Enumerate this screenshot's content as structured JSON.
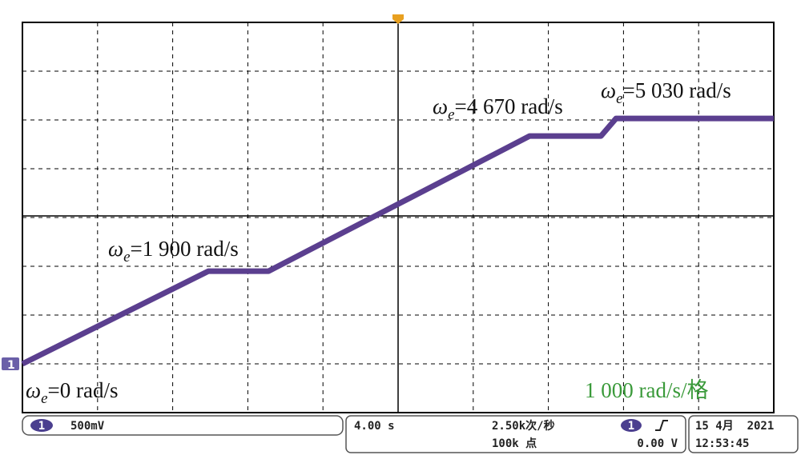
{
  "chart_data": {
    "type": "line",
    "x": [
      0,
      9.9,
      13.1,
      27.0,
      30.8,
      31.6,
      40
    ],
    "series": [
      {
        "color": "#5b3f8f",
        "values": [
          0,
          1900,
          1900,
          4670,
          4670,
          5030,
          5030
        ]
      }
    ],
    "xlim": [
      0,
      40
    ],
    "ylim": [
      -1000,
      7000
    ],
    "grid": true,
    "annotations": [
      {
        "symbol": "ω",
        "subscript": "e",
        "text": "=0 rad/s"
      },
      {
        "symbol": "ω",
        "subscript": "e",
        "text": "=1 900 rad/s"
      },
      {
        "symbol": "ω",
        "subscript": "e",
        "text": "=4 670 rad/s"
      },
      {
        "symbol": "ω",
        "subscript": "e",
        "text": "=5 030 rad/s"
      }
    ],
    "scale_label": "1 000 rad/s/格",
    "channel_marker": "1"
  },
  "status_bar": {
    "channel": "1",
    "volts_per_div": "500mV",
    "time_per_div": "4.00 s",
    "sample_rate": "2.50k次/秒",
    "points": "100k 点",
    "trigger_channel": "1",
    "trigger_level": "0.00 V",
    "date": "15 4月  2021",
    "time": "12:53:45"
  }
}
